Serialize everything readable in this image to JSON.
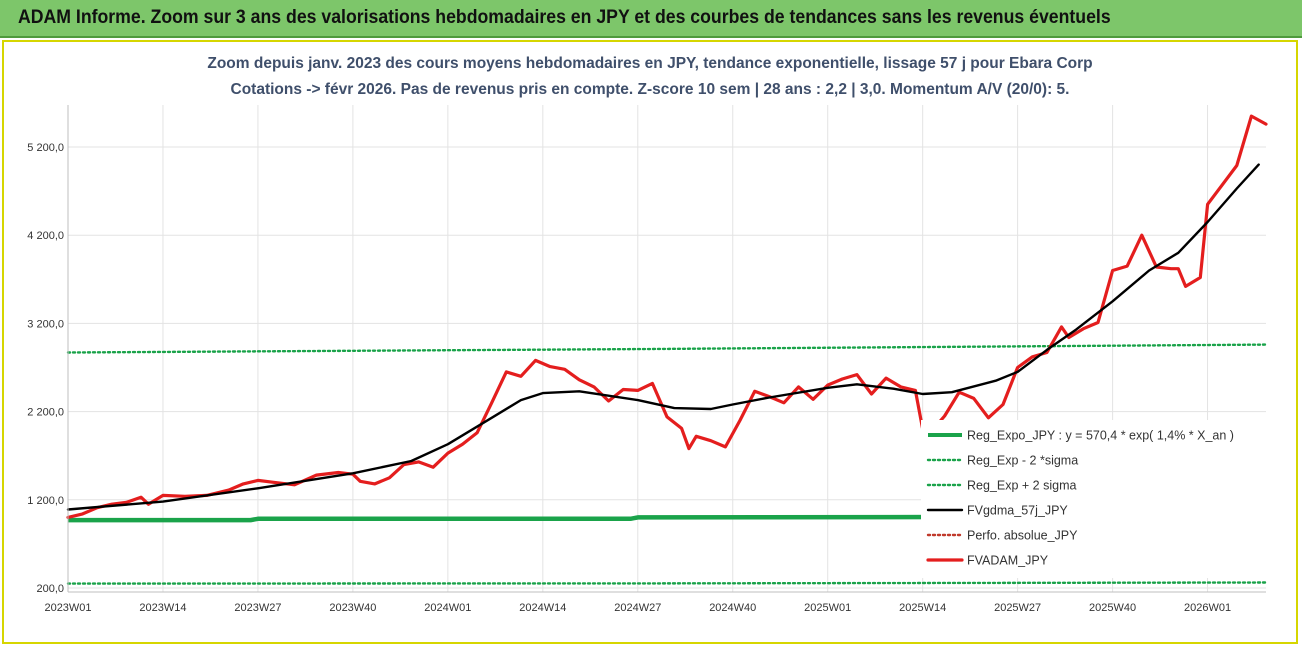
{
  "banner": {
    "title": "ADAM Informe. Zoom sur 3 ans des valorisations hebdomadaires en JPY et des courbes de tendances sans les revenus éventuels"
  },
  "colors": {
    "banner_bg": "#7dc66a",
    "green": "#1aa34a",
    "red": "#e41e1e",
    "black": "#000000",
    "dotted_red": "#c0392b"
  },
  "chart_data": {
    "type": "line",
    "title_line1": "Zoom depuis janv. 2023 des cours moyens hebdomadaires en JPY, tendance exponentielle, lissage 57 j pour Ebara Corp",
    "title_line2": "Cotations -> févr 2026.  Pas de revenus pris en compte. Z-score 10 sem | 28 ans : 2,2 | 3,0. Momentum A/V (20/0): 5.",
    "xlabel": "",
    "ylabel": "",
    "ylim": [
      200,
      6100
    ],
    "y_ticks": [
      "200,0",
      "1 200,0",
      "2 200,0",
      "3 200,0",
      "4 200,0",
      "5 200,0"
    ],
    "y_tick_values": [
      200,
      1200,
      2200,
      3200,
      4200,
      5200
    ],
    "x_ticks": [
      "2023W01",
      "2023W14",
      "2023W27",
      "2023W40",
      "2024W01",
      "2024W14",
      "2024W27",
      "2024W40",
      "2025W01",
      "2025W14",
      "2025W27",
      "2025W40",
      "2026W01"
    ],
    "x_tick_weeks": [
      0,
      13,
      26,
      39,
      52,
      65,
      78,
      91,
      104,
      117,
      130,
      143,
      156
    ],
    "x_range_weeks": [
      0,
      164
    ],
    "grid": true,
    "legend_position": "bottom-right",
    "series": [
      {
        "name": "Reg_Expo_JPY : y = 570,4 * exp( 1,4% *  X_an )",
        "style": "solid",
        "color": "#1aa34a",
        "points": [
          [
            0,
            970
          ],
          [
            25,
            970
          ],
          [
            26,
            985
          ],
          [
            77,
            985
          ],
          [
            78,
            1000
          ],
          [
            164,
            1010
          ]
        ]
      },
      {
        "name": "Reg_Exp - 2 *sigma",
        "style": "dotted",
        "color": "#1aa34a",
        "points": [
          [
            0,
            250
          ],
          [
            80,
            252
          ],
          [
            164,
            262
          ]
        ]
      },
      {
        "name": "Reg_Exp + 2 sigma",
        "style": "dotted",
        "color": "#1aa34a",
        "points": [
          [
            0,
            2870
          ],
          [
            80,
            2910
          ],
          [
            164,
            2960
          ]
        ]
      },
      {
        "name": "FVgdma_57j_JPY",
        "style": "solid",
        "color": "#000000",
        "points": [
          [
            0,
            1090
          ],
          [
            13,
            1180
          ],
          [
            26,
            1330
          ],
          [
            39,
            1500
          ],
          [
            47,
            1640
          ],
          [
            52,
            1830
          ],
          [
            58,
            2130
          ],
          [
            62,
            2330
          ],
          [
            65,
            2410
          ],
          [
            70,
            2430
          ],
          [
            78,
            2330
          ],
          [
            83,
            2240
          ],
          [
            88,
            2230
          ],
          [
            91,
            2280
          ],
          [
            96,
            2360
          ],
          [
            104,
            2470
          ],
          [
            108,
            2510
          ],
          [
            113,
            2460
          ],
          [
            117,
            2400
          ],
          [
            121,
            2420
          ],
          [
            127,
            2550
          ],
          [
            130,
            2650
          ],
          [
            134,
            2900
          ],
          [
            138,
            3130
          ],
          [
            143,
            3450
          ],
          [
            148,
            3800
          ],
          [
            152,
            4000
          ],
          [
            156,
            4350
          ],
          [
            160,
            4730
          ],
          [
            163,
            5000
          ]
        ]
      },
      {
        "name": "Perfo. absolue_JPY",
        "style": "dotted",
        "color": "#c0392b",
        "points": []
      },
      {
        "name": "FVADAM_JPY",
        "style": "solid",
        "color": "#e41e1e",
        "points": [
          [
            0,
            1000
          ],
          [
            2,
            1040
          ],
          [
            4,
            1110
          ],
          [
            6,
            1150
          ],
          [
            8,
            1170
          ],
          [
            10,
            1230
          ],
          [
            11,
            1150
          ],
          [
            13,
            1250
          ],
          [
            16,
            1240
          ],
          [
            19,
            1250
          ],
          [
            22,
            1310
          ],
          [
            24,
            1380
          ],
          [
            26,
            1420
          ],
          [
            28,
            1400
          ],
          [
            31,
            1370
          ],
          [
            34,
            1480
          ],
          [
            37,
            1510
          ],
          [
            39,
            1490
          ],
          [
            40,
            1410
          ],
          [
            42,
            1380
          ],
          [
            44,
            1450
          ],
          [
            46,
            1600
          ],
          [
            48,
            1630
          ],
          [
            50,
            1570
          ],
          [
            52,
            1730
          ],
          [
            54,
            1830
          ],
          [
            56,
            1960
          ],
          [
            58,
            2300
          ],
          [
            60,
            2650
          ],
          [
            62,
            2600
          ],
          [
            64,
            2780
          ],
          [
            66,
            2710
          ],
          [
            68,
            2680
          ],
          [
            70,
            2560
          ],
          [
            72,
            2480
          ],
          [
            74,
            2320
          ],
          [
            76,
            2450
          ],
          [
            78,
            2440
          ],
          [
            80,
            2520
          ],
          [
            82,
            2140
          ],
          [
            84,
            2010
          ],
          [
            85,
            1780
          ],
          [
            86,
            1920
          ],
          [
            88,
            1870
          ],
          [
            90,
            1800
          ],
          [
            92,
            2100
          ],
          [
            94,
            2430
          ],
          [
            96,
            2370
          ],
          [
            98,
            2300
          ],
          [
            100,
            2480
          ],
          [
            102,
            2340
          ],
          [
            104,
            2500
          ],
          [
            106,
            2570
          ],
          [
            108,
            2620
          ],
          [
            110,
            2400
          ],
          [
            112,
            2580
          ],
          [
            114,
            2480
          ],
          [
            116,
            2440
          ],
          [
            117,
            2000
          ],
          [
            118,
            1960
          ],
          [
            120,
            2150
          ],
          [
            122,
            2420
          ],
          [
            124,
            2350
          ],
          [
            126,
            2130
          ],
          [
            128,
            2280
          ],
          [
            130,
            2700
          ],
          [
            132,
            2820
          ],
          [
            134,
            2870
          ],
          [
            136,
            3160
          ],
          [
            137,
            3040
          ],
          [
            139,
            3140
          ],
          [
            141,
            3210
          ],
          [
            143,
            3800
          ],
          [
            145,
            3850
          ],
          [
            147,
            4200
          ],
          [
            149,
            3840
          ],
          [
            151,
            3820
          ],
          [
            152,
            3820
          ],
          [
            153,
            3620
          ],
          [
            155,
            3720
          ],
          [
            156,
            4550
          ],
          [
            158,
            4770
          ],
          [
            160,
            4990
          ],
          [
            162,
            5550
          ],
          [
            164,
            5460
          ]
        ]
      }
    ]
  }
}
